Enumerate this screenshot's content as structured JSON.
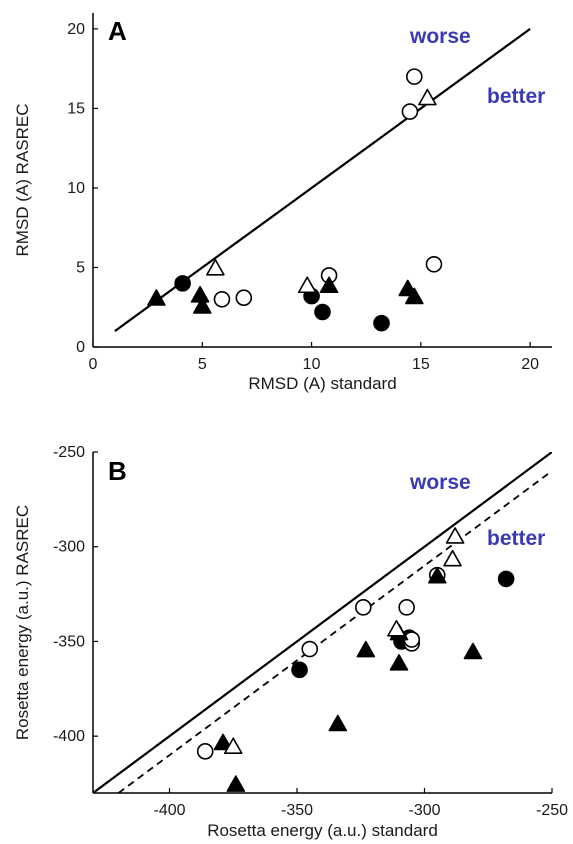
{
  "chart_data": [
    {
      "type": "scatter",
      "panel_label": "A",
      "xlabel": "RMSD (A) standard",
      "ylabel": "RMSD (A) RASREC",
      "xlim": [
        0,
        21
      ],
      "ylim": [
        0,
        21
      ],
      "xticks": [
        0,
        5,
        10,
        15,
        20
      ],
      "yticks": [
        0,
        5,
        10,
        15,
        20
      ],
      "grid": false,
      "annotations": {
        "above": "worse",
        "below": "better",
        "color": "#3a3ab5"
      },
      "lines": [
        {
          "style": "solid",
          "x": [
            1,
            20
          ],
          "y": [
            1,
            20
          ]
        }
      ],
      "series": [
        {
          "marker": "filled-circle",
          "x": [
            4.1,
            10.0,
            10.5,
            13.2
          ],
          "y": [
            4.0,
            3.2,
            2.2,
            1.5
          ]
        },
        {
          "marker": "open-circle",
          "x": [
            5.9,
            6.9,
            10.8,
            14.5,
            14.7,
            15.6
          ],
          "y": [
            3.0,
            3.1,
            4.5,
            14.8,
            17.0,
            5.2
          ]
        },
        {
          "marker": "filled-triangle",
          "x": [
            2.9,
            4.9,
            5.0,
            10.8,
            14.4,
            14.7
          ],
          "y": [
            3.0,
            3.2,
            2.5,
            3.8,
            3.6,
            3.1
          ]
        },
        {
          "marker": "open-triangle",
          "x": [
            5.6,
            9.8,
            15.3
          ],
          "y": [
            4.9,
            3.8,
            15.6
          ]
        }
      ]
    },
    {
      "type": "scatter",
      "panel_label": "B",
      "xlabel": "Rosetta energy (a.u.) standard",
      "ylabel": "Rosetta energy (a.u.) RASREC",
      "xlim": [
        -430,
        -250
      ],
      "ylim": [
        -430,
        -250
      ],
      "xticks": [
        -400,
        -350,
        -300,
        -250
      ],
      "yticks": [
        -400,
        -350,
        -300,
        -250
      ],
      "grid": false,
      "annotations": {
        "above": "worse",
        "below": "better",
        "color": "#3a3ab5"
      },
      "lines": [
        {
          "style": "solid",
          "x": [
            -430,
            -250
          ],
          "y": [
            -430,
            -250
          ]
        },
        {
          "style": "dashed",
          "x": [
            -420,
            -250
          ],
          "y": [
            -430,
            -260
          ]
        }
      ],
      "series": [
        {
          "marker": "filled-circle",
          "x": [
            -349,
            -309,
            -306,
            -305,
            -268
          ],
          "y": [
            -365,
            -350,
            -348,
            -349,
            -317
          ]
        },
        {
          "marker": "open-circle",
          "x": [
            -386,
            -345,
            -324,
            -307,
            -305,
            -305,
            -295
          ],
          "y": [
            -408,
            -354,
            -332,
            -332,
            -351,
            -349,
            -315
          ]
        },
        {
          "marker": "filled-triangle",
          "x": [
            -379,
            -374,
            -334,
            -323,
            -310,
            -310,
            -295,
            -281
          ],
          "y": [
            -404,
            -426,
            -394,
            -355,
            -346,
            -362,
            -316,
            -356
          ]
        },
        {
          "marker": "open-triangle",
          "x": [
            -375,
            -311,
            -289,
            -288
          ],
          "y": [
            -406,
            -344,
            -307,
            -295
          ]
        }
      ]
    }
  ]
}
